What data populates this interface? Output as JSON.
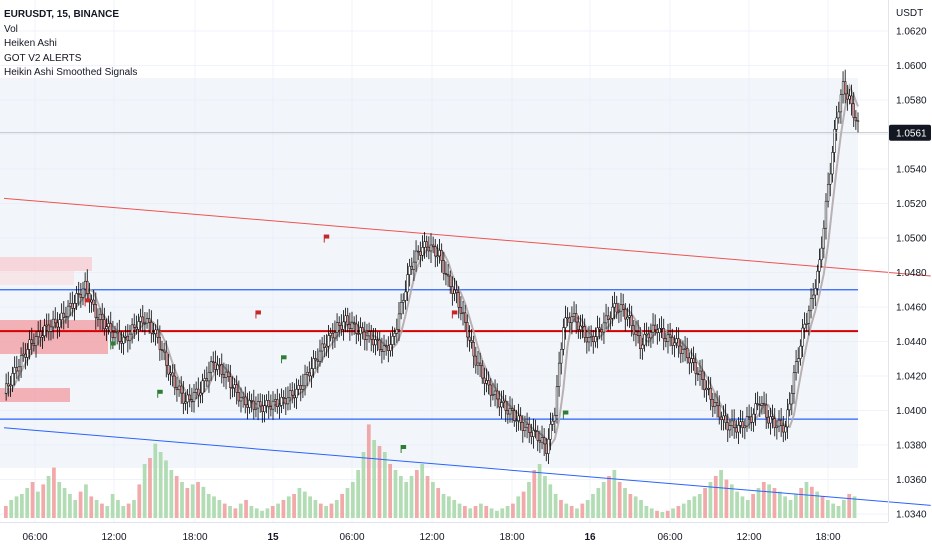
{
  "legend": {
    "symbol": "EURUSDT, 15, BINANCE",
    "indicators": [
      "Vol",
      "Heiken Ashi",
      "GOT V2 ALERTS",
      "Heikin Ashi Smoothed Signals"
    ]
  },
  "chart_data": {
    "type": "candlestick",
    "symbol": "EURUSDT",
    "interval": "15",
    "exchange": "BINANCE",
    "y_axis_unit": "USDT",
    "y_ticks": [
      "1.0620",
      "1.0600",
      "1.0580",
      "1.0560",
      "1.0540",
      "1.0520",
      "1.0500",
      "1.0480",
      "1.0460",
      "1.0440",
      "1.0420",
      "1.0400",
      "1.0380",
      "1.0360",
      "1.0340"
    ],
    "ylim": [
      1.0336,
      1.063
    ],
    "x_ticks": [
      {
        "label": "06:00",
        "bold": false
      },
      {
        "label": "12:00",
        "bold": false
      },
      {
        "label": "18:00",
        "bold": false
      },
      {
        "label": "15",
        "bold": true
      },
      {
        "label": "06:00",
        "bold": false
      },
      {
        "label": "12:00",
        "bold": false
      },
      {
        "label": "18:00",
        "bold": false
      },
      {
        "label": "16",
        "bold": true
      },
      {
        "label": "06:00",
        "bold": false
      },
      {
        "label": "12:00",
        "bold": false
      },
      {
        "label": "18:00",
        "bold": false
      }
    ],
    "current_price": "1.0561",
    "price_path": [
      [
        0,
        1.041
      ],
      [
        6,
        1.0425
      ],
      [
        12,
        1.0438
      ],
      [
        20,
        1.0448
      ],
      [
        26,
        1.0452
      ],
      [
        34,
        1.0465
      ],
      [
        38,
        1.0472
      ],
      [
        43,
        1.0456
      ],
      [
        50,
        1.0446
      ],
      [
        56,
        1.044
      ],
      [
        62,
        1.045
      ],
      [
        66,
        1.0453
      ],
      [
        72,
        1.0442
      ],
      [
        78,
        1.042
      ],
      [
        85,
        1.0405
      ],
      [
        92,
        1.0412
      ],
      [
        98,
        1.0428
      ],
      [
        104,
        1.042
      ],
      [
        108,
        1.0412
      ],
      [
        112,
        1.0405
      ],
      [
        120,
        1.0402
      ],
      [
        130,
        1.0405
      ],
      [
        138,
        1.0412
      ],
      [
        144,
        1.0425
      ],
      [
        150,
        1.0438
      ],
      [
        156,
        1.0448
      ],
      [
        160,
        1.0452
      ],
      [
        166,
        1.0446
      ],
      [
        172,
        1.0442
      ],
      [
        178,
        1.0435
      ],
      [
        182,
        1.044
      ],
      [
        186,
        1.046
      ],
      [
        190,
        1.0482
      ],
      [
        194,
        1.0492
      ],
      [
        198,
        1.0496
      ],
      [
        204,
        1.049
      ],
      [
        208,
        1.0475
      ],
      [
        212,
        1.0466
      ],
      [
        216,
        1.045
      ],
      [
        220,
        1.0432
      ],
      [
        226,
        1.0415
      ],
      [
        232,
        1.0405
      ],
      [
        238,
        1.0398
      ],
      [
        244,
        1.039
      ],
      [
        250,
        1.0385
      ],
      [
        254,
        1.0378
      ],
      [
        258,
        1.04
      ],
      [
        262,
        1.045
      ],
      [
        266,
        1.0455
      ],
      [
        270,
        1.0448
      ],
      [
        274,
        1.044
      ],
      [
        278,
        1.0445
      ],
      [
        282,
        1.0452
      ],
      [
        286,
        1.046
      ],
      [
        290,
        1.0458
      ],
      [
        294,
        1.045
      ],
      [
        298,
        1.0438
      ],
      [
        302,
        1.0445
      ],
      [
        306,
        1.0448
      ],
      [
        310,
        1.0442
      ],
      [
        314,
        1.044
      ],
      [
        320,
        1.0432
      ],
      [
        326,
        1.042
      ],
      [
        332,
        1.0405
      ],
      [
        338,
        1.0392
      ],
      [
        344,
        1.039
      ],
      [
        350,
        1.0396
      ],
      [
        354,
        1.0406
      ],
      [
        358,
        1.0395
      ],
      [
        362,
        1.0392
      ],
      [
        366,
        1.039
      ],
      [
        370,
        1.042
      ],
      [
        374,
        1.0445
      ],
      [
        378,
        1.0462
      ],
      [
        382,
        1.0485
      ],
      [
        386,
        1.053
      ],
      [
        390,
        1.057
      ],
      [
        393,
        1.0588
      ],
      [
        396,
        1.058
      ],
      [
        400,
        1.0565
      ]
    ],
    "volume": [
      0.1,
      0.15,
      0.18,
      0.2,
      0.25,
      0.3,
      0.22,
      0.28,
      0.35,
      0.42,
      0.3,
      0.25,
      0.2,
      0.15,
      0.22,
      0.28,
      0.18,
      0.15,
      0.12,
      0.1,
      0.2,
      0.15,
      0.1,
      0.12,
      0.15,
      0.28,
      0.45,
      0.5,
      0.62,
      0.55,
      0.48,
      0.4,
      0.35,
      0.3,
      0.25,
      0.28,
      0.3,
      0.26,
      0.2,
      0.18,
      0.15,
      0.12,
      0.1,
      0.08,
      0.12,
      0.15,
      0.1,
      0.08,
      0.06,
      0.08,
      0.1,
      0.12,
      0.15,
      0.18,
      0.2,
      0.25,
      0.22,
      0.18,
      0.15,
      0.12,
      0.1,
      0.12,
      0.15,
      0.2,
      0.25,
      0.3,
      0.4,
      0.55,
      0.78,
      0.65,
      0.6,
      0.55,
      0.45,
      0.4,
      0.35,
      0.3,
      0.35,
      0.4,
      0.45,
      0.35,
      0.3,
      0.25,
      0.2,
      0.18,
      0.15,
      0.12,
      0.1,
      0.08,
      0.1,
      0.12,
      0.1,
      0.08,
      0.06,
      0.08,
      0.1,
      0.12,
      0.18,
      0.22,
      0.3,
      0.4,
      0.45,
      0.35,
      0.28,
      0.2,
      0.15,
      0.12,
      0.1,
      0.08,
      0.12,
      0.15,
      0.2,
      0.25,
      0.3,
      0.35,
      0.4,
      0.3,
      0.25,
      0.2,
      0.18,
      0.15,
      0.1,
      0.08,
      0.06,
      0.05,
      0.06,
      0.08,
      0.1,
      0.12,
      0.15,
      0.18,
      0.2,
      0.25,
      0.3,
      0.35,
      0.4,
      0.32,
      0.28,
      0.22,
      0.18,
      0.15,
      0.2,
      0.25,
      0.3,
      0.28,
      0.25,
      0.22,
      0.18,
      0.15,
      0.2,
      0.25,
      0.3,
      0.26,
      0.22,
      0.18,
      0.15,
      0.12,
      0.1,
      0.15,
      0.2,
      0.18
    ],
    "volume_ylim": [
      0,
      1.0
    ],
    "horizontal_lines": [
      {
        "price": 1.047,
        "color": "#2962ff"
      },
      {
        "price": 1.0446,
        "color": "#d50000"
      },
      {
        "price": 1.0395,
        "color": "#2962ff"
      }
    ],
    "trend_lines": [
      {
        "from": [
          0,
          1.0523
        ],
        "to": [
          420,
          1.0478
        ],
        "color": "#ef5350"
      },
      {
        "from": [
          0,
          1.039
        ],
        "to": [
          420,
          1.0345
        ],
        "color": "#2962ff"
      }
    ],
    "colors": {
      "up": "#a5d6a7",
      "down": "#ef9a9a",
      "candle_body": "#000000",
      "smoothed_line": "#b2a8a8",
      "signal_buy": "#2e7d32",
      "signal_sell": "#c62828",
      "zone_fill": "#e3eaf7",
      "blue_line": "#2962ff",
      "red_line": "#d50000",
      "price_label_bg": "#131722"
    },
    "signals": [
      {
        "x": 38,
        "price": 1.0465,
        "type": "sell"
      },
      {
        "x": 50,
        "price": 1.044,
        "type": "buy"
      },
      {
        "x": 72,
        "price": 1.0412,
        "type": "buy"
      },
      {
        "x": 118,
        "price": 1.0458,
        "type": "sell"
      },
      {
        "x": 130,
        "price": 1.0432,
        "type": "buy"
      },
      {
        "x": 150,
        "price": 1.0502,
        "type": "sell"
      },
      {
        "x": 186,
        "price": 1.038,
        "type": "buy"
      },
      {
        "x": 210,
        "price": 1.0458,
        "type": "sell"
      },
      {
        "x": 262,
        "price": 1.04,
        "type": "buy"
      }
    ]
  }
}
